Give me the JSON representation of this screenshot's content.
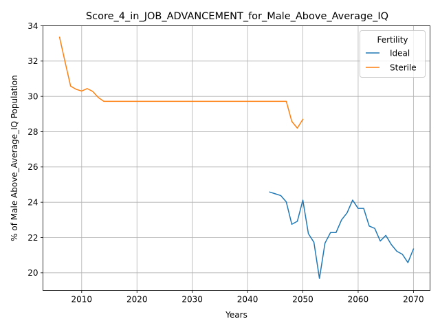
{
  "chart_data": {
    "type": "line",
    "title": "Score_4_in_JOB_ADVANCEMENT_for_Male_Above_Average_IQ",
    "xlabel": "Years",
    "ylabel": "% of Male Above_Average_IQ Population",
    "xlim": [
      2003,
      2073
    ],
    "ylim": [
      19,
      34
    ],
    "xticks": [
      2010,
      2020,
      2030,
      2040,
      2050,
      2060,
      2070
    ],
    "yticks": [
      20,
      22,
      24,
      26,
      28,
      30,
      32,
      34
    ],
    "grid": true,
    "legend": {
      "title": "Fertility",
      "placement": "top-right"
    },
    "series": [
      {
        "name": "Ideal",
        "color": "#1f77b4",
        "x": [
          2044,
          2045,
          2046,
          2047,
          2048,
          2049,
          2050,
          2051,
          2052,
          2053,
          2054,
          2055,
          2056,
          2057,
          2058,
          2059,
          2060,
          2061,
          2062,
          2063,
          2064,
          2065,
          2066,
          2067,
          2068,
          2069,
          2070
        ],
        "y": [
          24.58,
          24.48,
          24.38,
          24.02,
          22.75,
          22.92,
          24.12,
          22.22,
          21.73,
          19.68,
          21.68,
          22.28,
          22.28,
          23.0,
          23.4,
          24.12,
          23.65,
          23.65,
          22.65,
          22.52,
          21.8,
          22.12,
          21.6,
          21.22,
          21.05,
          20.58,
          21.35
        ]
      },
      {
        "name": "Sterile",
        "color": "#ff7f0e",
        "x": [
          2006,
          2007,
          2008,
          2009,
          2010,
          2011,
          2012,
          2013,
          2014,
          2015,
          2020,
          2030,
          2040,
          2046,
          2047,
          2048,
          2049,
          2050
        ],
        "y": [
          33.35,
          31.95,
          30.58,
          30.4,
          30.3,
          30.44,
          30.28,
          29.94,
          29.72,
          29.72,
          29.72,
          29.72,
          29.72,
          29.72,
          29.72,
          28.58,
          28.2,
          28.7
        ]
      }
    ]
  }
}
